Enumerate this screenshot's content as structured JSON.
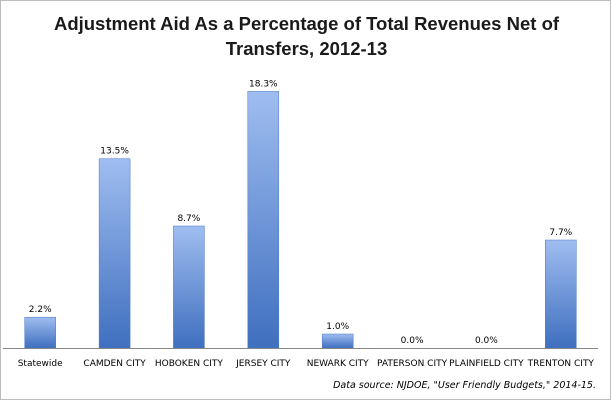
{
  "chart_data": {
    "type": "bar",
    "title": "Adjustment Aid As a Percentage of Total Revenues Net of Transfers, 2012-13",
    "categories": [
      "Statewide",
      "CAMDEN CITY",
      "HOBOKEN CITY",
      "JERSEY CITY",
      "NEWARK CITY",
      "PATERSON CITY",
      "PLAINFIELD CITY",
      "TRENTON CITY"
    ],
    "values": [
      2.2,
      13.5,
      8.7,
      18.3,
      1.0,
      0.0,
      0.0,
      7.7
    ],
    "data_labels": [
      "2.2%",
      "13.5%",
      "8.7%",
      "18.3%",
      "1.0%",
      "0.0%",
      "0.0%",
      "7.7%"
    ],
    "ylim": [
      0,
      20
    ],
    "xlabel": "",
    "ylabel": "",
    "grid": false,
    "legend": "none",
    "bar_color": "#5b8bd6"
  },
  "source_note": "Data source: NJDOE, \"User Friendly Budgets,\" 2014-15."
}
